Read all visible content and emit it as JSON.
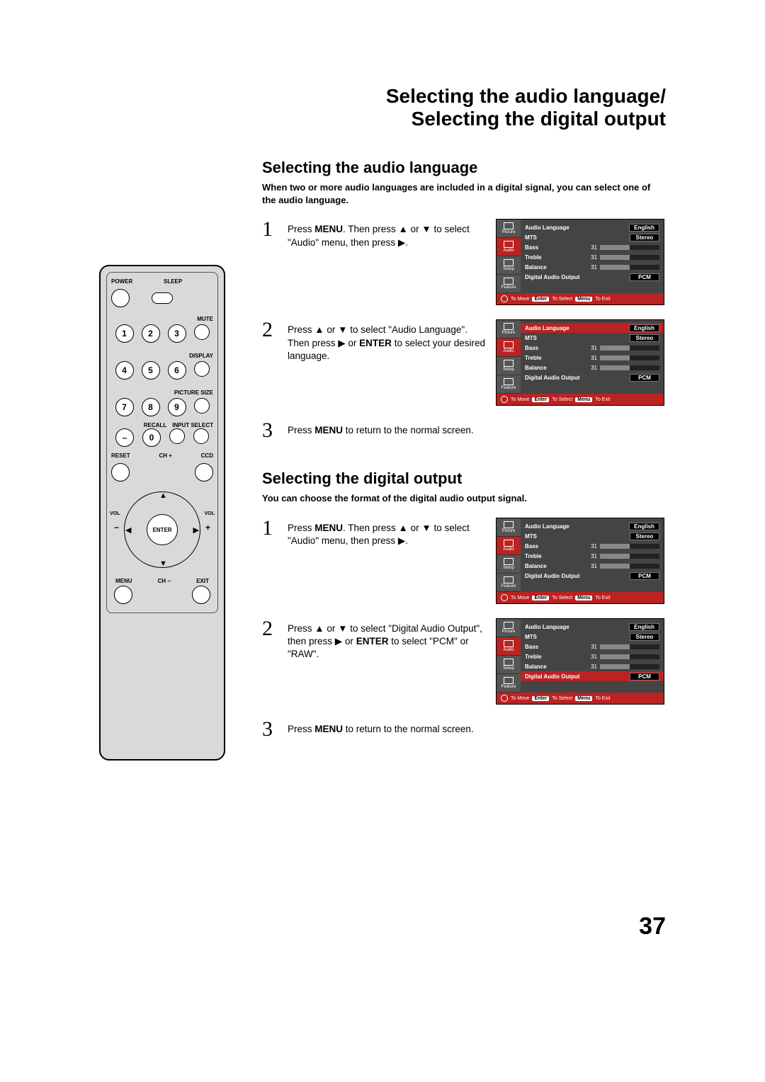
{
  "page_title_line1": "Selecting the audio language/",
  "page_title_line2": "Selecting the digital output",
  "page_number": "37",
  "section1": {
    "title": "Selecting the audio language",
    "subtitle": "When two or more audio languages are included in a digital signal, you can select one of the audio language.",
    "steps": {
      "s1": {
        "n": "1",
        "pre": "Press ",
        "b1": "MENU",
        "mid": ". Then press ▲ or ▼ to select \"Audio\" menu, then press ▶."
      },
      "s2": {
        "n": "2",
        "pre": "Press ▲ or ▼ to select \"Audio Language\". Then press ▶ or ",
        "b1": "ENTER",
        "post": " to select your desired language."
      },
      "s3": {
        "n": "3",
        "pre": "Press ",
        "b1": "MENU",
        "post": " to return to the normal screen."
      }
    }
  },
  "section2": {
    "title": "Selecting the digital output",
    "subtitle": "You can choose the format of the digital audio output signal.",
    "steps": {
      "s1": {
        "n": "1",
        "pre": "Press ",
        "b1": "MENU",
        "mid": ". Then press ▲ or ▼ to select \"Audio\" menu, then press ▶."
      },
      "s2": {
        "n": "2",
        "pre": "Press ▲ or ▼ to select \"Digital Audio Output\", then press ▶ or ",
        "b1": "ENTER",
        "post": " to select \"PCM\" or \"RAW\"."
      },
      "s3": {
        "n": "3",
        "pre": "Press ",
        "b1": "MENU",
        "post": " to return to the normal screen."
      }
    }
  },
  "remote": {
    "power": "POWER",
    "sleep": "SLEEP",
    "mute": "MUTE",
    "display": "DISPLAY",
    "picture_size": "PICTURE SIZE",
    "recall": "RECALL",
    "input": "INPUT SELECT",
    "reset": "RESET",
    "chp": "CH +",
    "chm": "CH −",
    "ccd": "CCD",
    "vol": "VOL",
    "enter": "ENTER",
    "menu": "MENU",
    "exit": "EXIT",
    "d1": "1",
    "d2": "2",
    "d3": "3",
    "d4": "4",
    "d5": "5",
    "d6": "6",
    "d7": "7",
    "d8": "8",
    "d9": "9",
    "d0": "0",
    "dm": "–"
  },
  "osd": {
    "tabs": {
      "picture": "Picture",
      "audio": "Audio",
      "setup": "Setup",
      "feature": "Feature"
    },
    "rows": {
      "audio_lang": "Audio Language",
      "mts": "MTS",
      "bass": "Bass",
      "treble": "Treble",
      "balance": "Balance",
      "digital": "Digital Audio Output"
    },
    "vals": {
      "english": "English",
      "stereo": "Stereo",
      "n31": "31",
      "pcm": "PCM"
    },
    "footer": {
      "move": "To Move",
      "enter": "Enter",
      "select": "To Select",
      "menu": "Menu",
      "exit": "To Exit"
    }
  }
}
